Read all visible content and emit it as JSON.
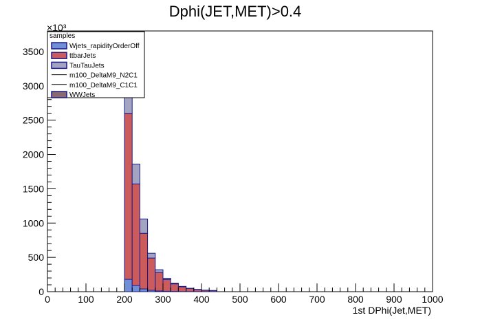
{
  "chart_data": {
    "type": "bar",
    "title": "Dphi(JET,MET)>0.4",
    "xlabel": "1st DPhi(Jet,MET)",
    "ylabel": "",
    "y_multiplier": "×10³",
    "xlim": [
      0,
      1000
    ],
    "ylim": [
      0,
      3800
    ],
    "x_ticks": [
      0,
      100,
      200,
      300,
      400,
      500,
      600,
      700,
      800,
      900,
      1000
    ],
    "y_ticks": [
      0,
      500,
      1000,
      1500,
      2000,
      2500,
      3000,
      3500
    ],
    "bin_width": 20,
    "bin_edges": [
      200,
      220,
      240,
      260,
      280,
      300,
      320,
      340,
      360,
      380,
      400,
      420,
      440
    ],
    "stacked": true,
    "legend": {
      "title": "samples",
      "position": "top-left"
    },
    "series": [
      {
        "name": "Wjets_rapidityOrderOff",
        "color": "#6f8fd6",
        "values": [
          180,
          90,
          40,
          20,
          10,
          6,
          4,
          2,
          2,
          1,
          1,
          1
        ]
      },
      {
        "name": "ttbarJets",
        "color": "#cc5c5c",
        "values": [
          2420,
          1480,
          810,
          470,
          270,
          170,
          110,
          70,
          45,
          30,
          20,
          15
        ]
      },
      {
        "name": "TauTauJets",
        "color": "#a3a3c2",
        "values": [
          300,
          290,
          210,
          70,
          40,
          20,
          10,
          5,
          3,
          2,
          1,
          1
        ]
      },
      {
        "name": "m100_DeltaM9_N2C1",
        "color": "#000000",
        "values": [
          0,
          0,
          0,
          0,
          0,
          0,
          0,
          0,
          0,
          0,
          0,
          0
        ]
      },
      {
        "name": "m100_DeltaM9_C1C1",
        "color": "#000000",
        "values": [
          0,
          0,
          0,
          0,
          0,
          0,
          0,
          0,
          0,
          0,
          0,
          0
        ]
      },
      {
        "name": "WWJets",
        "color": "#8a6a70",
        "values": [
          0,
          0,
          0,
          0,
          0,
          0,
          0,
          0,
          0,
          0,
          0,
          0
        ]
      }
    ]
  }
}
